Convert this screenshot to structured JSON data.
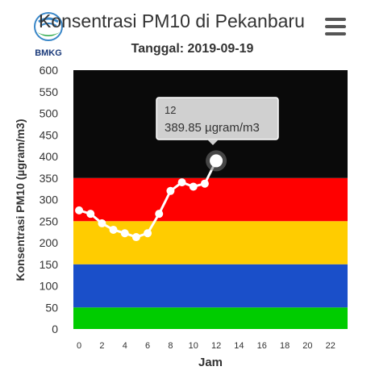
{
  "header": {
    "title": "Konsentrasi PM10 di Pekanbaru",
    "subtitle": "Tanggal: 2019-09-19",
    "logo_text": "BMKG",
    "menu_icon": "hamburger-menu-icon"
  },
  "chart_data": {
    "type": "line",
    "title": "Konsentrasi PM10 di Pekanbaru",
    "subtitle": "Tanggal: 2019-09-19",
    "xlabel": "Jam",
    "ylabel": "Konsentrasi PM10 (µgram/m3)",
    "xlim": [
      -0.5,
      23.5
    ],
    "ylim": [
      0,
      600
    ],
    "x_ticks": [
      0,
      2,
      4,
      6,
      8,
      10,
      12,
      14,
      16,
      18,
      20,
      22
    ],
    "y_ticks": [
      0,
      50,
      100,
      150,
      200,
      250,
      300,
      350,
      400,
      450,
      500,
      550,
      600
    ],
    "bands": [
      {
        "from": 0,
        "to": 50,
        "color": "#00cc00"
      },
      {
        "from": 50,
        "to": 150,
        "color": "#1a4fc9"
      },
      {
        "from": 150,
        "to": 250,
        "color": "#ffcc00"
      },
      {
        "from": 250,
        "to": 350,
        "color": "#ff0000"
      },
      {
        "from": 350,
        "to": 600,
        "color": "#0a0a0a"
      }
    ],
    "series": [
      {
        "color": "#ffffff",
        "x": [
          0,
          1,
          2,
          3,
          4,
          5,
          6,
          7,
          8,
          9,
          10,
          11,
          12
        ],
        "values": [
          275,
          267,
          245,
          230,
          222,
          213,
          222,
          267,
          320,
          340,
          330,
          337,
          389.85
        ]
      }
    ],
    "tooltip": {
      "x_label": "12",
      "value_label": "389.85 µgram/m3",
      "point_index": 12
    }
  }
}
